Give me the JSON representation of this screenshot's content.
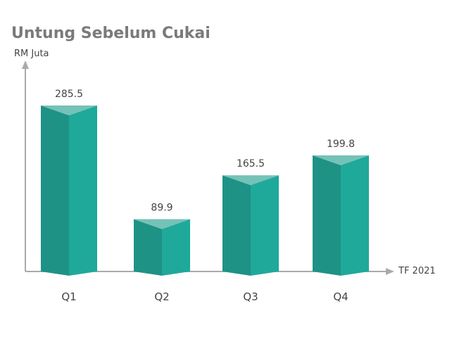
{
  "chart_data": {
    "type": "bar",
    "title": "Untung Sebelum Cukai",
    "ylabel": "RM Juta",
    "xlabel": "TF 2021",
    "categories": [
      "Q1",
      "Q2",
      "Q3",
      "Q4"
    ],
    "values": [
      285.5,
      89.9,
      165.5,
      199.8
    ],
    "value_labels": [
      "285.5",
      "89.9",
      "165.5",
      "199.8"
    ],
    "ylim": [
      0,
      300
    ],
    "grid": false,
    "legend": "none",
    "style": "3d-prism"
  },
  "colors": {
    "bar_left": "#1e9285",
    "bar_right": "#1fa99a",
    "bar_top": "#74c2b8",
    "axis": "#aaaaaa",
    "title": "#7a7a7a",
    "text": "#444444"
  }
}
